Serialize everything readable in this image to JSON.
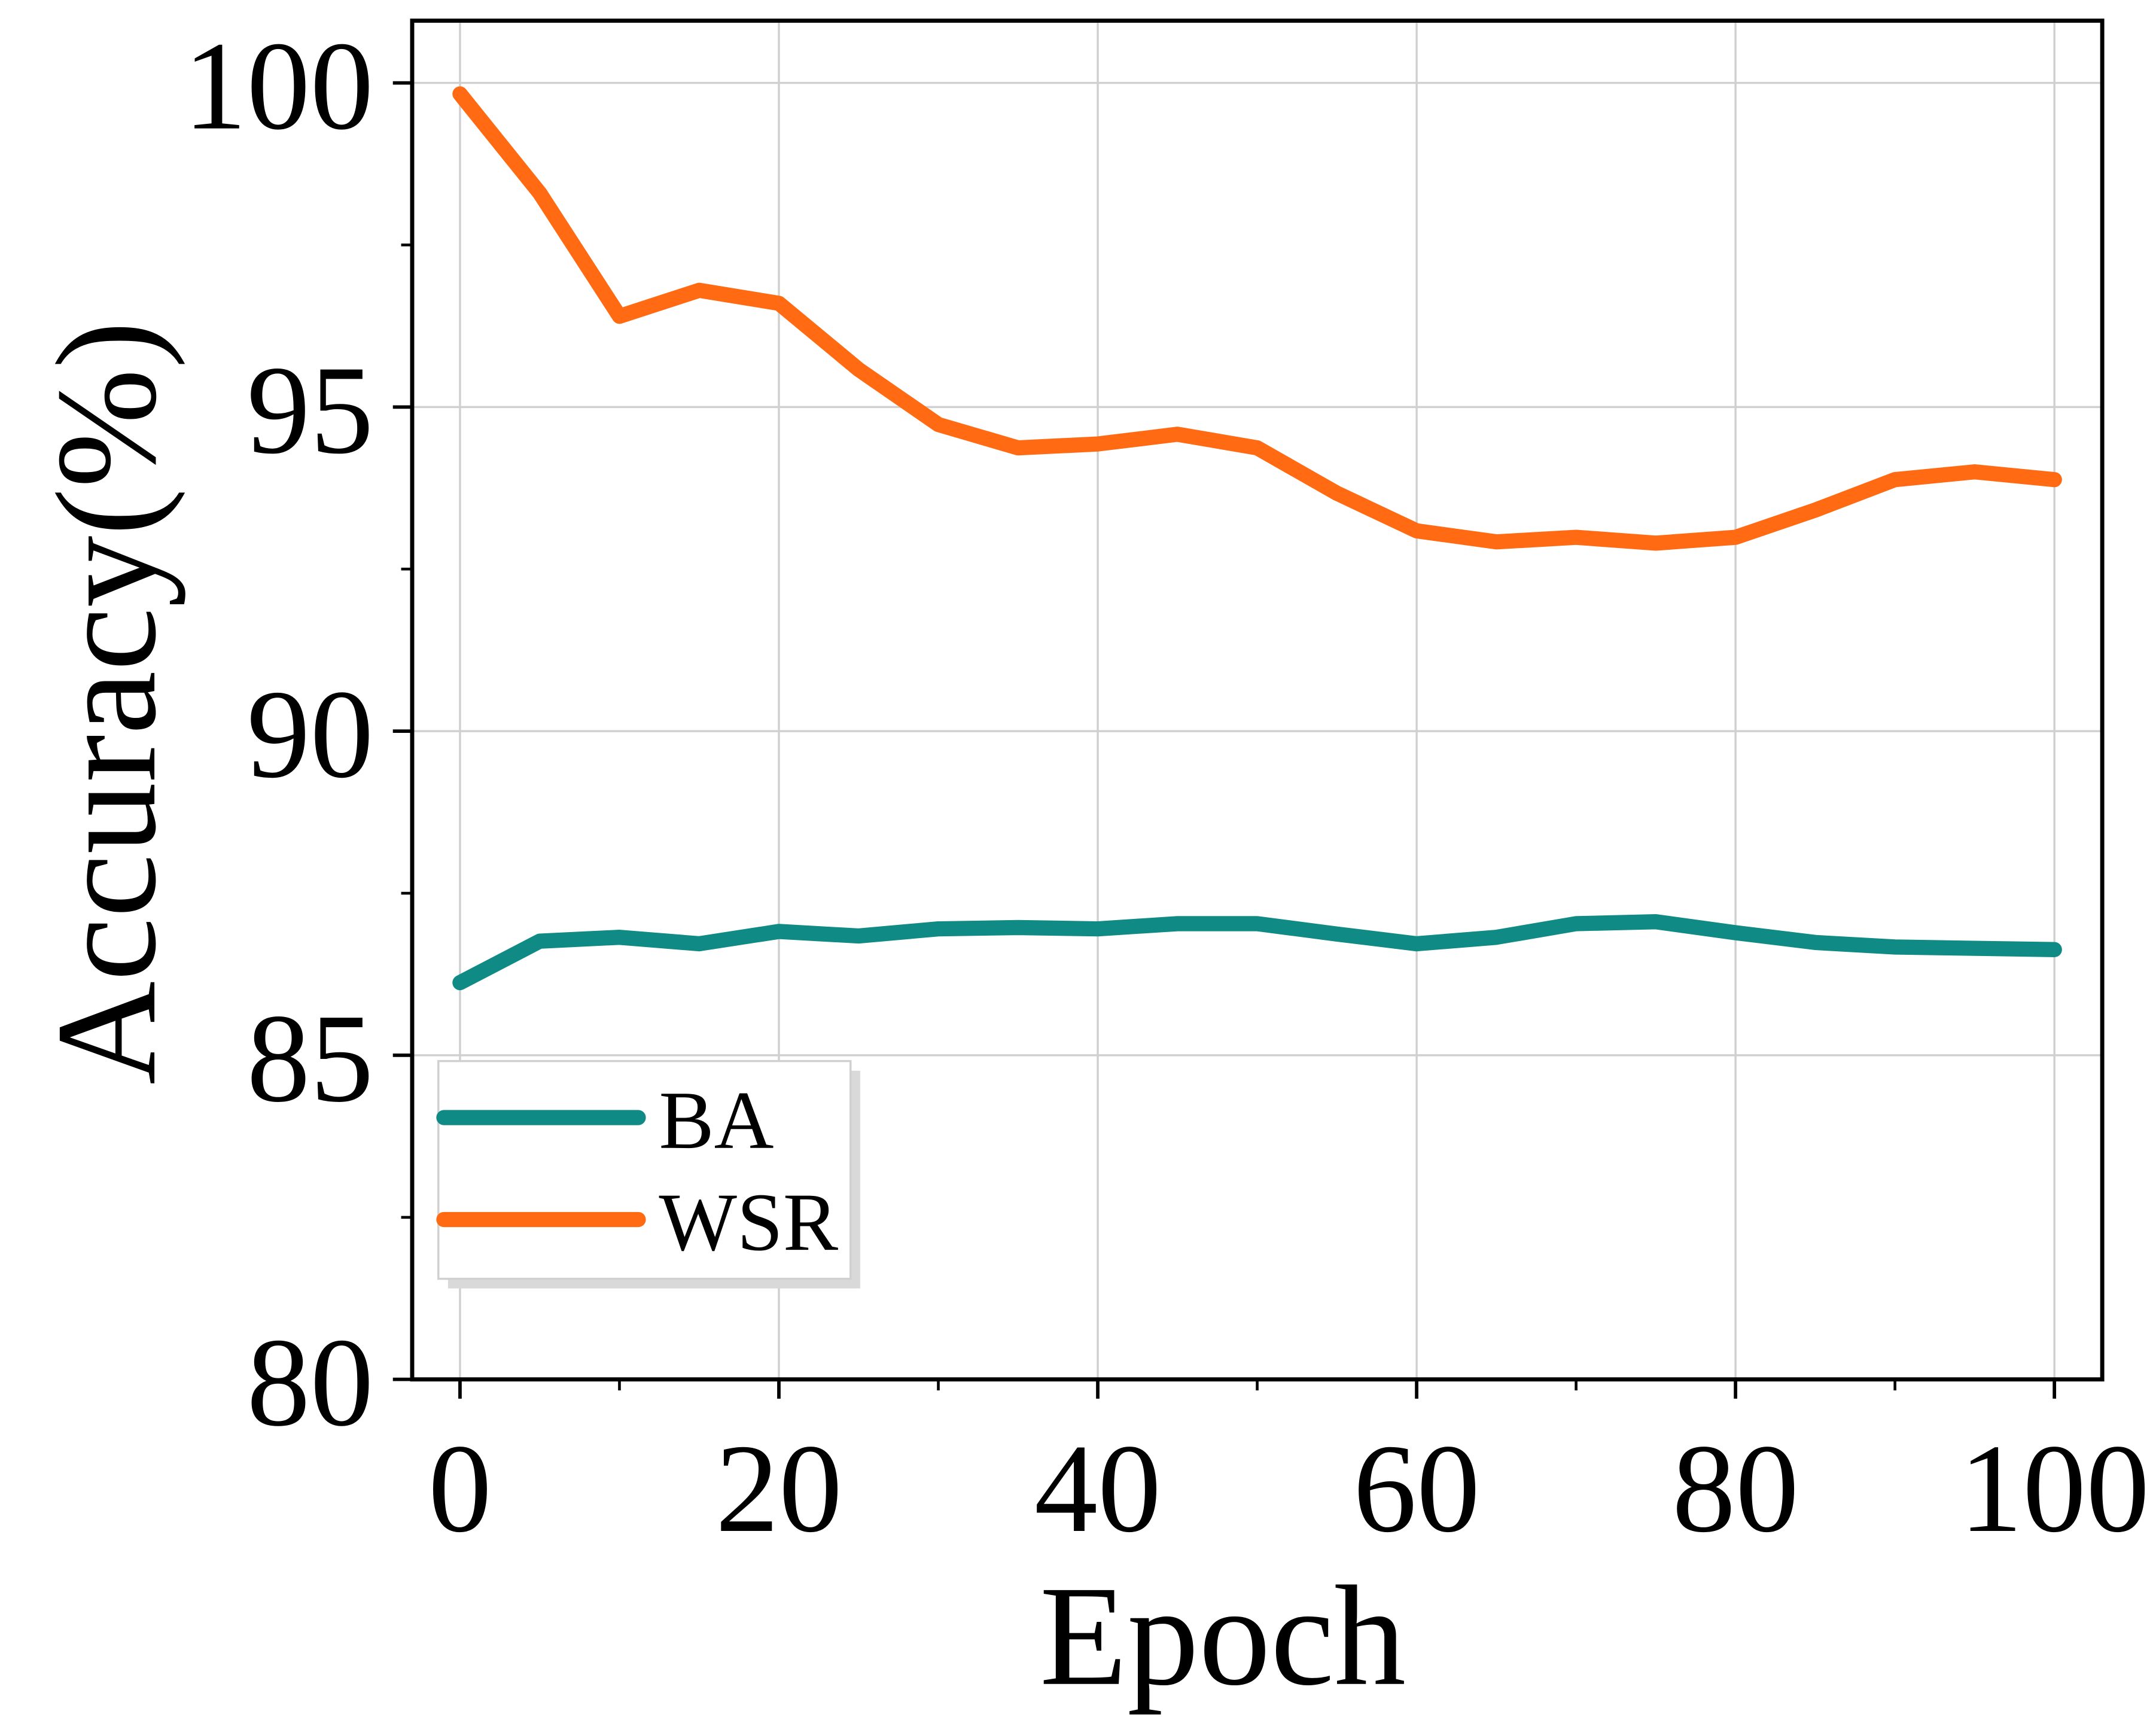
{
  "chart_data": {
    "type": "line",
    "xlabel": "Epoch",
    "ylabel": "Accuracy(%)",
    "x": [
      0,
      5,
      10,
      15,
      20,
      25,
      30,
      35,
      40,
      45,
      50,
      55,
      60,
      65,
      70,
      75,
      80,
      85,
      90,
      95,
      100
    ],
    "series": [
      {
        "name": "BA",
        "color": "#0f8a84",
        "values": [
          86.12,
          86.76,
          86.82,
          86.72,
          86.91,
          86.84,
          86.95,
          86.97,
          86.95,
          87.03,
          87.03,
          86.87,
          86.72,
          86.82,
          87.03,
          87.06,
          86.89,
          86.74,
          86.67,
          86.65,
          86.63
        ]
      },
      {
        "name": "WSR",
        "color": "#ff6a13",
        "values": [
          99.83,
          98.3,
          96.4,
          96.8,
          96.6,
          95.58,
          94.73,
          94.37,
          94.43,
          94.58,
          94.37,
          93.67,
          93.09,
          92.92,
          92.99,
          92.9,
          92.99,
          93.41,
          93.88,
          94.0,
          93.88
        ]
      }
    ],
    "xlim": [
      -3,
      103
    ],
    "ylim": [
      80,
      100.96
    ],
    "xticks": [
      0,
      20,
      40,
      60,
      80,
      100
    ],
    "yticks": [
      80,
      85,
      90,
      95,
      100
    ],
    "xminorticks": [
      10,
      30,
      50,
      70,
      90
    ],
    "yminorticks": [
      82.5,
      87.5,
      92.5,
      97.5
    ],
    "grid": true,
    "legend": "lower left"
  }
}
